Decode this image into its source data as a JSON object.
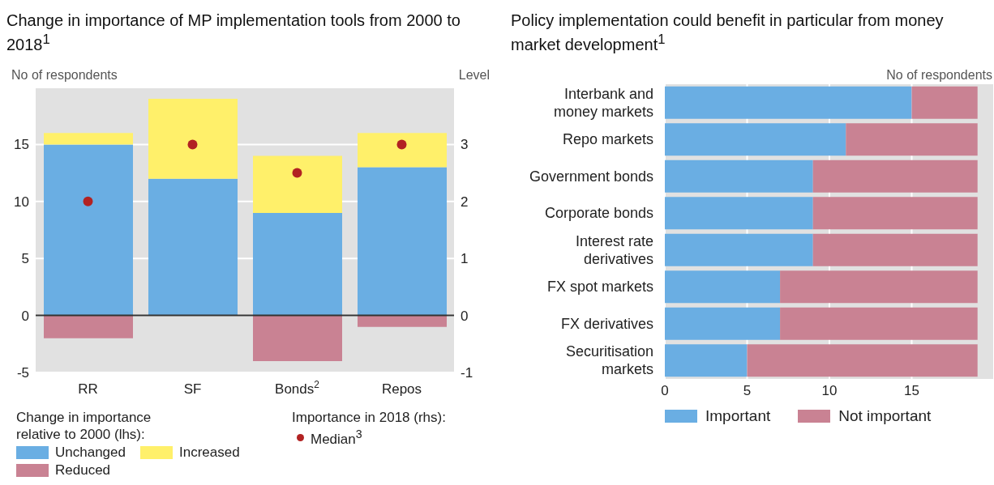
{
  "chart_data": [
    {
      "type": "bar",
      "title": "Change in importance of MP implementation tools from 2000 to 2018$^{1}$",
      "ylabel": "No of respondents",
      "y2label": "Level",
      "legend_title": "Change in importance relative to 2000 (lhs):",
      "annotations": [
        "Importance in 2018 (rhs):"
      ],
      "categories": [
        "RR",
        "SF",
        "Bonds$^{2}$",
        "Repos"
      ],
      "stacked": true,
      "series": [
        {
          "name": "Unchanged",
          "color": "#6aaee3",
          "values": [
            15,
            12,
            9,
            13
          ]
        },
        {
          "name": "Increased",
          "color": "#fff06a",
          "values": [
            1,
            7,
            5,
            3
          ]
        },
        {
          "name": "Reduced",
          "color": "#c98293",
          "values": [
            -2,
            0,
            -4,
            -1
          ]
        },
        {
          "name": "Median$^{3}$",
          "type": "scatter",
          "axis": "y2",
          "color": "#b22222",
          "values": [
            2,
            3,
            2.5,
            3
          ]
        }
      ],
      "ylim": [
        -5,
        20
      ],
      "yticks": [
        -5,
        0,
        5,
        10,
        15
      ],
      "y2lim": [
        -1,
        4
      ],
      "y2ticks": [
        -1,
        0,
        1,
        2,
        3
      ],
      "ref_lines": [
        {
          "axis": "y",
          "value": 0,
          "color": "#333333"
        }
      ],
      "grid": "y",
      "legend": "bottom",
      "marker": "circle"
    },
    {
      "type": "bar",
      "orientation": "horizontal",
      "stacked": true,
      "title": "Policy implementation could benefit in particular from money market development$^{1}$",
      "xlabel": "No of respondents",
      "categories": [
        "Interbank and money markets",
        "Repo markets",
        "Government bonds",
        "Corporate bonds",
        "Interest rate derivatives",
        "FX spot markets",
        "FX derivatives",
        "Securitisation markets"
      ],
      "series": [
        {
          "name": "Important",
          "color": "#6aaee3",
          "values": [
            15,
            11,
            9,
            9,
            9,
            7,
            7,
            5
          ]
        },
        {
          "name": "Not important",
          "color": "#c98293",
          "values": [
            4,
            8,
            10,
            10,
            10,
            12,
            12,
            14
          ]
        }
      ],
      "xlim": [
        0,
        20
      ],
      "xticks": [
        0,
        5,
        10,
        15
      ],
      "grid": "x",
      "legend": "bottom"
    }
  ]
}
